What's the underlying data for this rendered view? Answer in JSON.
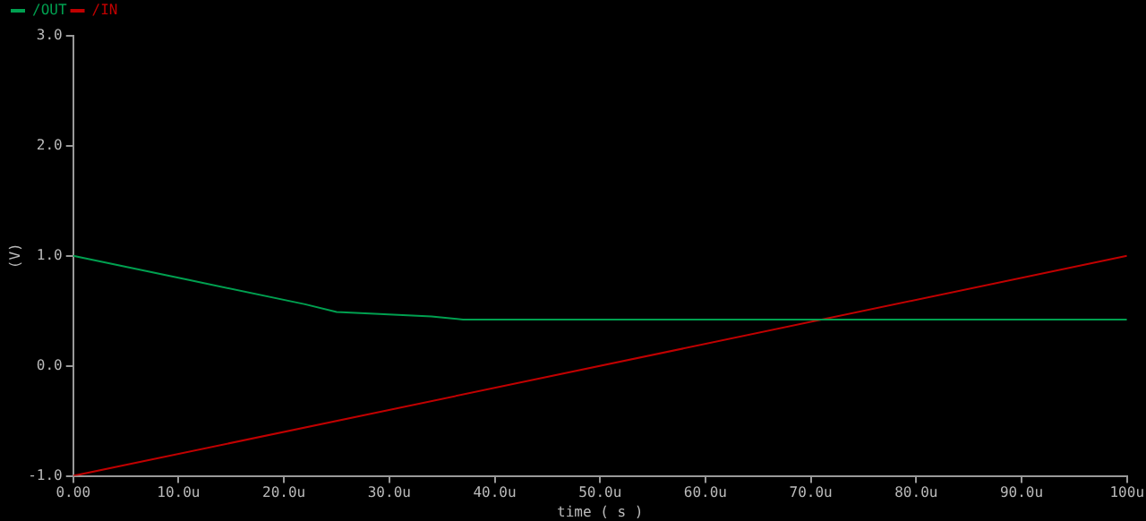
{
  "chart_data": {
    "type": "line",
    "xlabel": "time ( s )",
    "ylabel": "(V)",
    "series": [
      {
        "name": "/OUT",
        "color": "#00a050",
        "x": [
          0,
          11,
          22,
          25,
          34,
          37,
          100
        ],
        "values": [
          1.0,
          0.78,
          0.56,
          0.49,
          0.45,
          0.42,
          0.42
        ]
      },
      {
        "name": "/IN",
        "color": "#c00000",
        "x": [
          0,
          100
        ],
        "values": [
          -1.0,
          1.0
        ]
      }
    ],
    "xlim": [
      0,
      100
    ],
    "xticks": [
      {
        "value": 0,
        "label": "0.00"
      },
      {
        "value": 10,
        "label": "10.0u"
      },
      {
        "value": 20,
        "label": "20.0u"
      },
      {
        "value": 30,
        "label": "30.0u"
      },
      {
        "value": 40,
        "label": "40.0u"
      },
      {
        "value": 50,
        "label": "50.0u"
      },
      {
        "value": 60,
        "label": "60.0u"
      },
      {
        "value": 70,
        "label": "70.0u"
      },
      {
        "value": 80,
        "label": "80.0u"
      },
      {
        "value": 90,
        "label": "90.0u"
      },
      {
        "value": 100,
        "label": "100u"
      }
    ],
    "ylim": [
      -1.0,
      3.0
    ],
    "yticks": [
      {
        "value": -1,
        "label": "-1.0"
      },
      {
        "value": 0,
        "label": "0.0"
      },
      {
        "value": 1,
        "label": "1.0"
      },
      {
        "value": 2,
        "label": "2.0"
      },
      {
        "value": 3,
        "label": "3.0"
      }
    ],
    "grid": false,
    "legend": "top left",
    "marker": "none",
    "line_style": "solid"
  }
}
